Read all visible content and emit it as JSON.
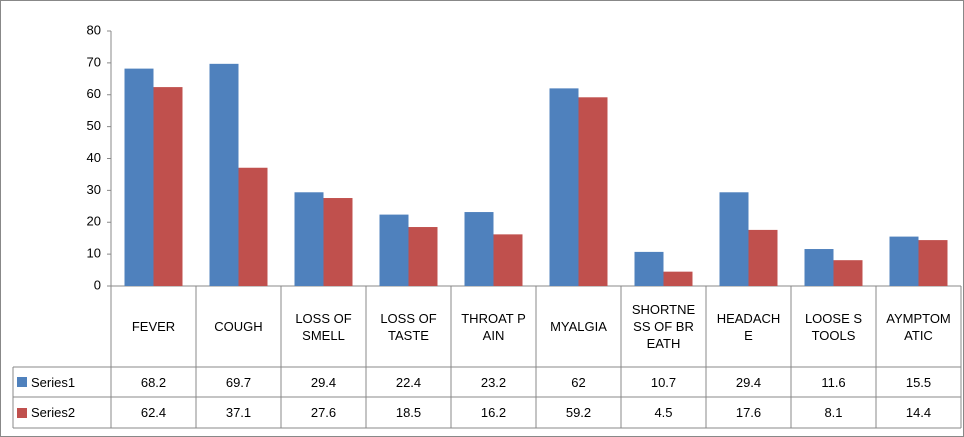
{
  "chart_data": {
    "type": "bar",
    "categories": [
      "FEVER",
      "COUGH",
      "LOSS OF SMELL",
      "LOSS OF TASTE",
      "THROAT PAIN",
      "MYALGIA",
      "SHORTNESS OF BREATH",
      "HEADACHE",
      "LOOSE STOOLS",
      "AYMPTOMATIC"
    ],
    "series": [
      {
        "name": "Series1",
        "color": "#4f81bd",
        "values": [
          68.2,
          69.7,
          29.4,
          22.4,
          23.2,
          62,
          10.7,
          29.4,
          11.6,
          15.5
        ]
      },
      {
        "name": "Series2",
        "color": "#c0504d",
        "values": [
          62.4,
          37.1,
          27.6,
          18.5,
          16.2,
          59.2,
          4.5,
          17.6,
          8.1,
          14.4
        ]
      }
    ],
    "ylim": [
      0,
      80
    ],
    "yticks": [
      0,
      10,
      20,
      30,
      40,
      50,
      60,
      70,
      80
    ]
  }
}
